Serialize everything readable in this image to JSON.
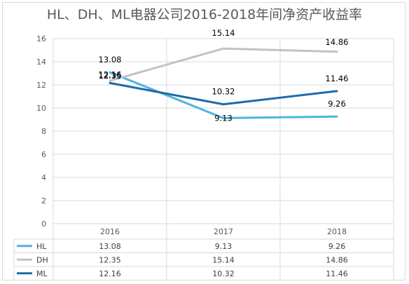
{
  "chart_data": {
    "type": "line",
    "title": "HL、DH、ML电器公司2016-2018年间净资产收益率",
    "categories": [
      "2016",
      "2017",
      "2018"
    ],
    "series": [
      {
        "name": "HL",
        "values": [
          13.08,
          9.13,
          9.26
        ],
        "color": "#4FB4E0"
      },
      {
        "name": "DH",
        "values": [
          12.35,
          15.14,
          14.86
        ],
        "color": "#BFC3C9"
      },
      {
        "name": "ML",
        "values": [
          12.16,
          10.32,
          11.46
        ],
        "color": "#1F6AAA"
      }
    ],
    "ylim": [
      0,
      16
    ],
    "yticks": [
      "0",
      "2",
      "4",
      "6",
      "8",
      "10",
      "12",
      "14",
      "16"
    ],
    "grid": true,
    "data_table": {
      "rows": [
        {
          "name": "HL",
          "cells": [
            "13.08",
            "9.13",
            "9.26"
          ]
        },
        {
          "name": "DH",
          "cells": [
            "12.35",
            "15.14",
            "14.86"
          ]
        },
        {
          "name": "ML",
          "cells": [
            "12.16",
            "10.32",
            "11.46"
          ]
        }
      ]
    }
  }
}
